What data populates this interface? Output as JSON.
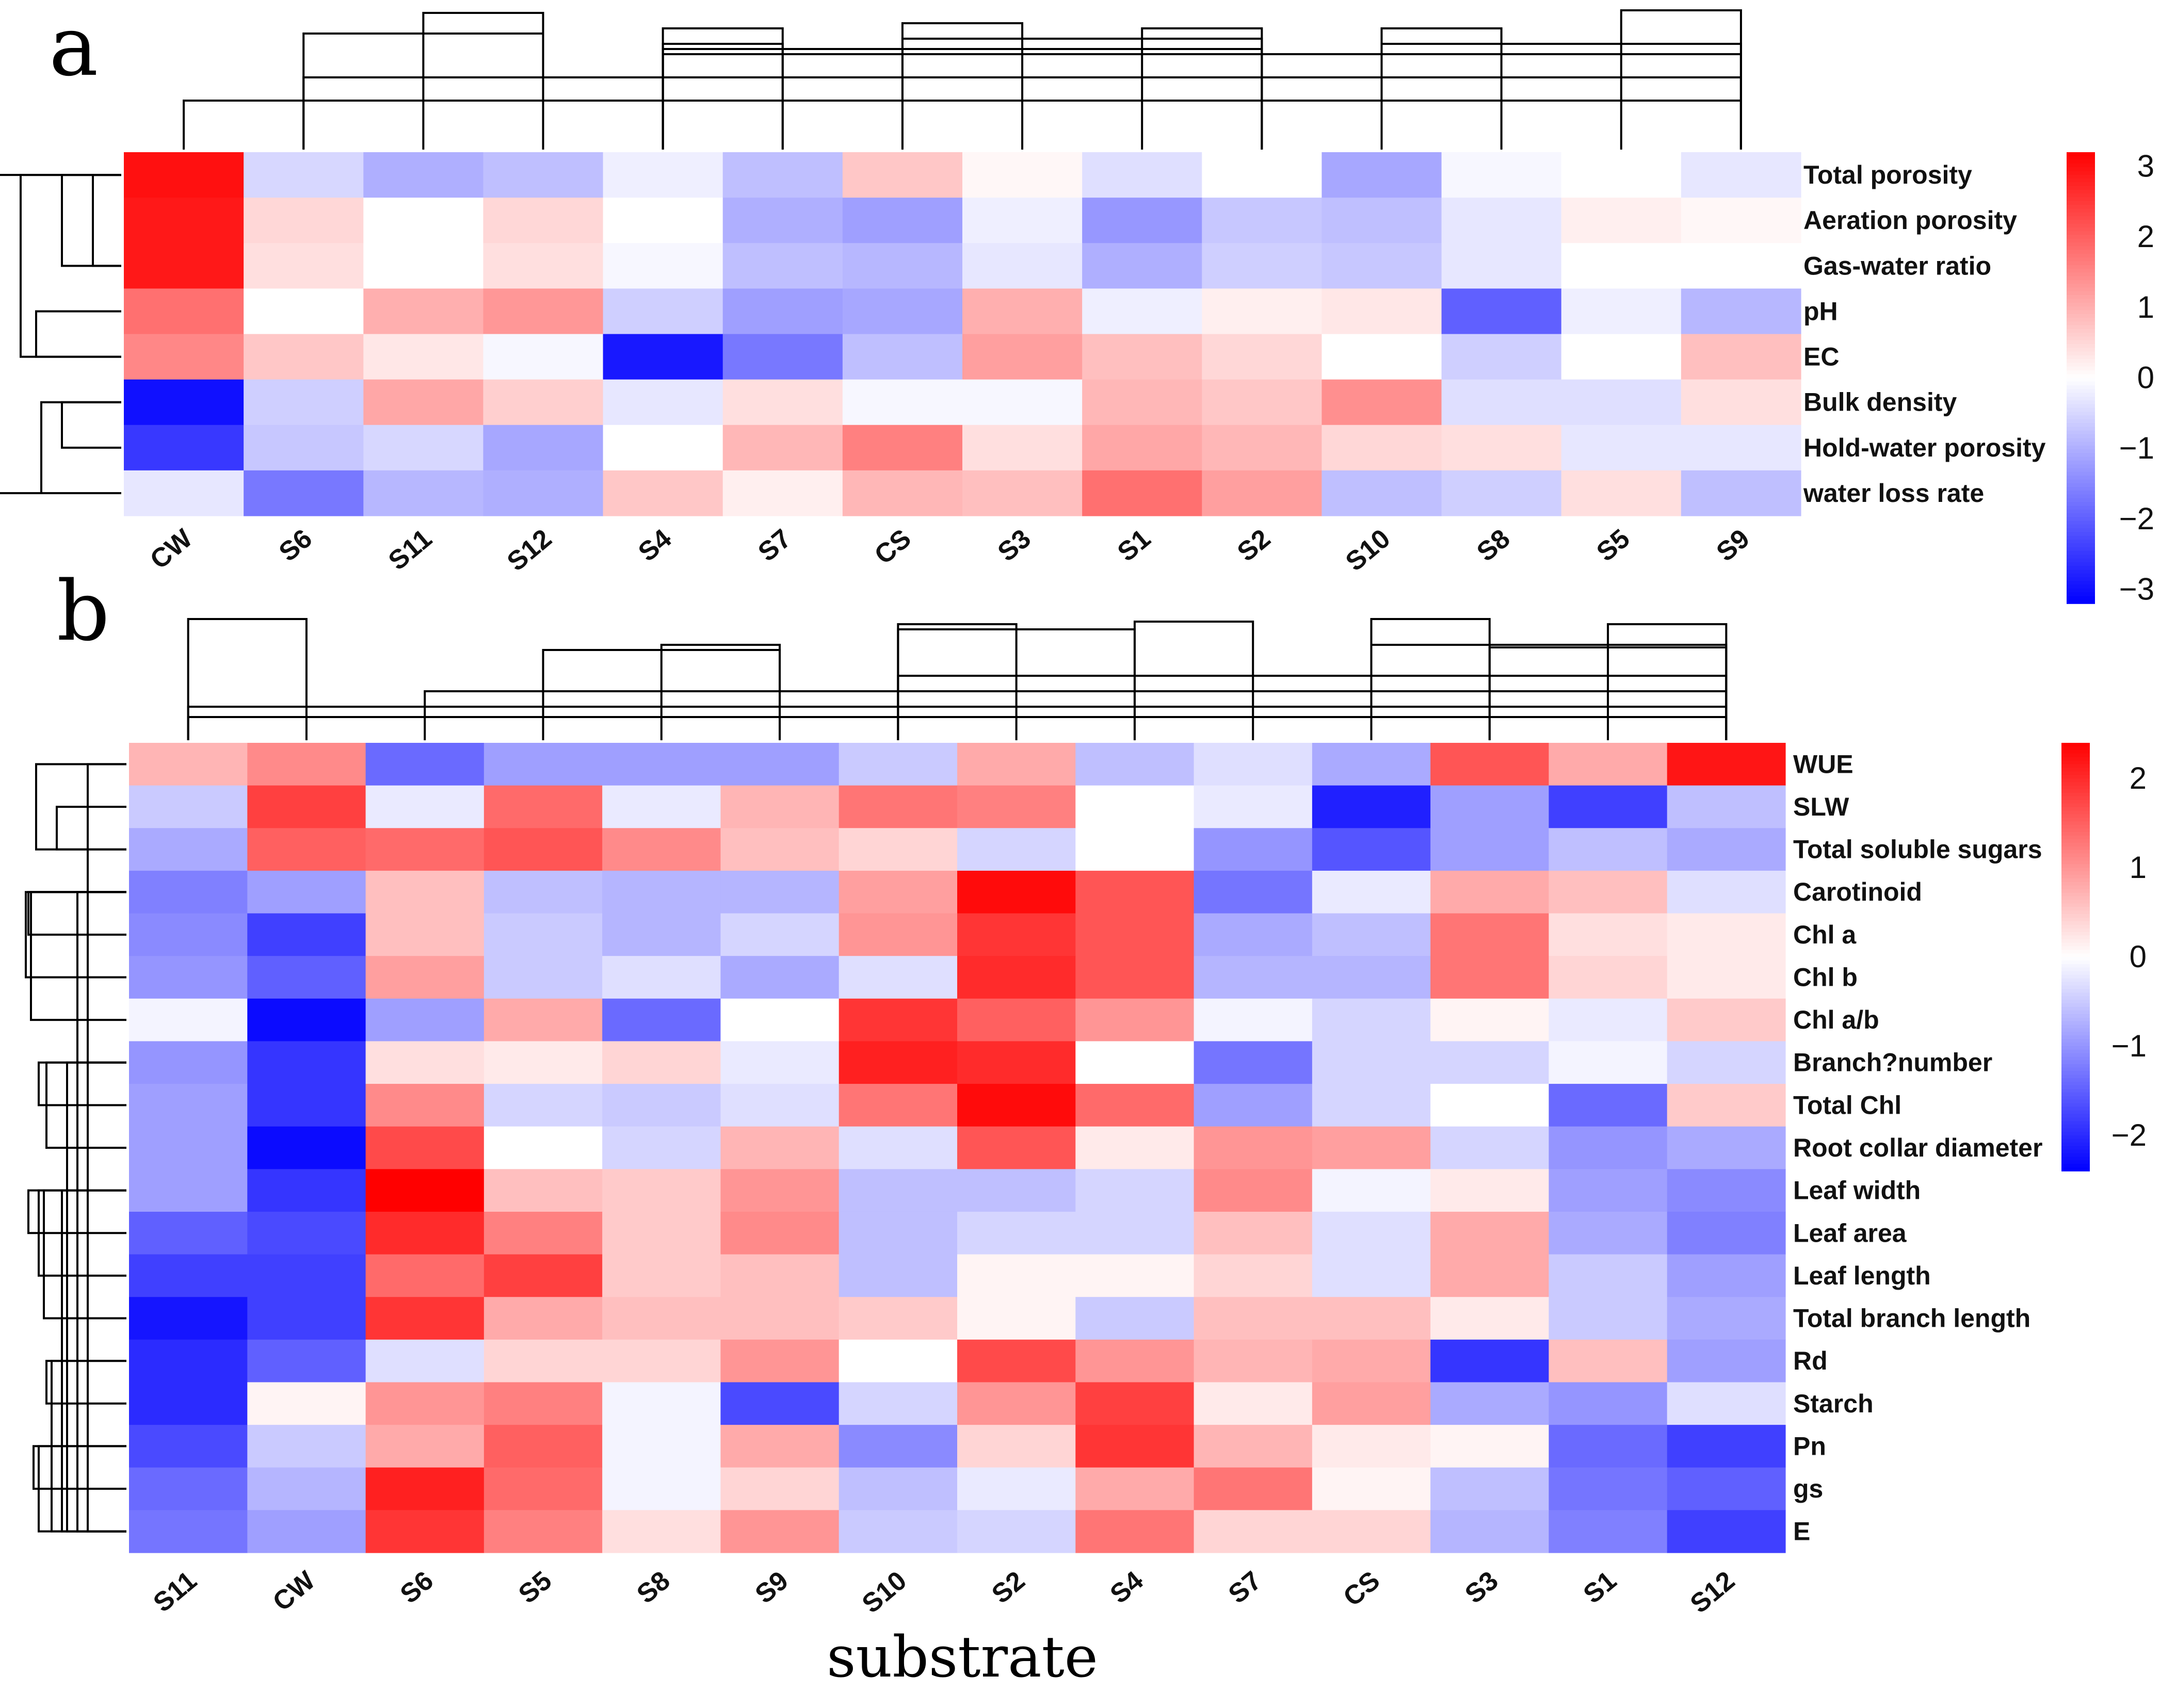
{
  "chart_data": [
    {
      "panel": "a",
      "type": "heatmap",
      "columns": [
        "CW",
        "S6",
        "S11",
        "S12",
        "S4",
        "S7",
        "CS",
        "S3",
        "S1",
        "S2",
        "S10",
        "S8",
        "S5",
        "S9"
      ],
      "rows": [
        "Total porosity",
        "Aeration porosity",
        "Gas-water ratio",
        "pH",
        "EC",
        "Bulk density",
        "Hold-water porosity",
        "water loss rate"
      ],
      "values": [
        [
          3.0,
          -0.5,
          -1.0,
          -0.8,
          -0.2,
          -0.8,
          0.7,
          0.1,
          -0.4,
          0.0,
          -1.1,
          -0.1,
          0.0,
          -0.3
        ],
        [
          2.9,
          0.5,
          0.0,
          0.5,
          0.0,
          -1.0,
          -1.2,
          -0.2,
          -1.3,
          -0.7,
          -0.8,
          -0.3,
          0.2,
          0.1
        ],
        [
          2.9,
          0.4,
          0.0,
          0.4,
          -0.1,
          -0.8,
          -0.9,
          -0.3,
          -1.0,
          -0.6,
          -0.7,
          -0.3,
          0.0,
          0.0
        ],
        [
          1.8,
          0.0,
          1.0,
          1.3,
          -0.6,
          -1.2,
          -1.1,
          1.0,
          -0.2,
          0.2,
          0.3,
          -2.0,
          -0.2,
          -0.9
        ],
        [
          1.5,
          0.7,
          0.3,
          -0.1,
          -2.9,
          -1.7,
          -0.8,
          1.2,
          0.8,
          0.5,
          0.0,
          -0.6,
          0.0,
          0.8
        ],
        [
          -3.0,
          -0.6,
          1.1,
          0.6,
          -0.3,
          0.4,
          -0.1,
          -0.1,
          0.9,
          0.7,
          1.4,
          -0.4,
          -0.4,
          0.4
        ],
        [
          -2.5,
          -0.7,
          -0.5,
          -1.1,
          0.0,
          0.9,
          1.6,
          0.4,
          1.1,
          0.9,
          0.5,
          0.4,
          -0.3,
          -0.3
        ],
        [
          -0.3,
          -1.7,
          -0.9,
          -1.0,
          0.7,
          0.2,
          0.9,
          0.8,
          1.8,
          1.2,
          -0.8,
          -0.6,
          0.4,
          -0.8
        ]
      ],
      "color_scale": {
        "min": -3.2,
        "max": 3.2,
        "low": "#0000ff",
        "mid": "#ffffff",
        "high": "#ff0000"
      },
      "legend_ticks": [
        {
          "value": 3,
          "label": "3"
        },
        {
          "value": 2,
          "label": "2"
        },
        {
          "value": 1,
          "label": "1"
        },
        {
          "value": 0,
          "label": "0"
        },
        {
          "value": -1,
          "label": "−1"
        },
        {
          "value": -2,
          "label": "−2"
        },
        {
          "value": -3,
          "label": "−3"
        }
      ]
    },
    {
      "panel": "b",
      "type": "heatmap",
      "columns": [
        "S11",
        "CW",
        "S6",
        "S5",
        "S8",
        "S9",
        "S10",
        "S2",
        "S4",
        "S7",
        "CS",
        "S3",
        "S1",
        "S12"
      ],
      "rows": [
        "WUE",
        "SLW",
        "Total soluble sugars",
        "Carotinoid",
        "Chl a",
        "Chl b",
        "Chl a/b",
        "Branch?number",
        "Total Chl",
        "Root collar diameter",
        "Leaf width",
        "Leaf area",
        "Leaf length",
        "Total branch length",
        "Rd",
        "Starch",
        "Pn",
        "gs",
        "E"
      ],
      "values": [
        [
          0.7,
          1.1,
          -1.4,
          -0.9,
          -0.9,
          -0.9,
          -0.5,
          0.8,
          -0.6,
          -0.3,
          -0.8,
          1.6,
          0.8,
          2.2
        ],
        [
          -0.5,
          1.8,
          -0.2,
          1.4,
          -0.2,
          0.7,
          1.3,
          1.2,
          0.0,
          -0.2,
          -2.1,
          -0.9,
          -1.8,
          -0.6
        ],
        [
          -0.8,
          1.5,
          1.4,
          1.6,
          1.1,
          0.6,
          0.4,
          -0.4,
          0.0,
          -1.0,
          -1.6,
          -0.9,
          -0.6,
          -0.8
        ],
        [
          -1.2,
          -0.9,
          0.6,
          -0.6,
          -0.7,
          -0.7,
          0.9,
          2.3,
          1.6,
          -1.3,
          -0.2,
          0.8,
          0.6,
          -0.3
        ],
        [
          -1.1,
          -1.8,
          0.6,
          -0.5,
          -0.7,
          -0.4,
          1.0,
          1.9,
          1.6,
          -0.8,
          -0.6,
          1.3,
          0.3,
          0.2
        ],
        [
          -1.0,
          -1.5,
          0.9,
          -0.5,
          -0.3,
          -0.8,
          -0.3,
          2.0,
          1.6,
          -0.7,
          -0.7,
          1.3,
          0.4,
          0.2
        ],
        [
          -0.1,
          -2.3,
          -0.9,
          0.8,
          -1.4,
          0.0,
          1.9,
          1.5,
          1.0,
          -0.1,
          -0.4,
          0.1,
          -0.2,
          0.5
        ],
        [
          -1.0,
          -1.9,
          0.3,
          0.2,
          0.4,
          -0.2,
          2.1,
          2.0,
          0.0,
          -1.3,
          -0.4,
          -0.4,
          -0.1,
          -0.4
        ],
        [
          -0.9,
          -1.9,
          1.1,
          -0.4,
          -0.5,
          -0.3,
          1.3,
          2.3,
          1.4,
          -0.9,
          -0.4,
          0.0,
          -1.4,
          0.5
        ],
        [
          -0.9,
          -2.3,
          1.7,
          0.0,
          -0.4,
          0.7,
          -0.3,
          1.6,
          0.2,
          1.0,
          0.9,
          -0.4,
          -1.0,
          -0.8
        ],
        [
          -0.9,
          -1.9,
          2.4,
          0.6,
          0.5,
          1.0,
          -0.6,
          -0.6,
          -0.4,
          1.1,
          -0.1,
          0.2,
          -0.9,
          -1.1
        ],
        [
          -1.5,
          -1.7,
          2.0,
          1.2,
          0.5,
          1.1,
          -0.6,
          -0.4,
          -0.4,
          0.6,
          -0.3,
          0.8,
          -0.8,
          -1.2
        ],
        [
          -1.8,
          -1.8,
          1.4,
          1.8,
          0.5,
          0.6,
          -0.6,
          0.1,
          0.1,
          0.4,
          -0.3,
          0.8,
          -0.5,
          -0.9
        ],
        [
          -2.2,
          -1.8,
          1.9,
          0.8,
          0.6,
          0.6,
          0.5,
          0.1,
          -0.5,
          0.6,
          0.6,
          0.2,
          -0.5,
          -0.8
        ],
        [
          -2.0,
          -1.5,
          -0.3,
          0.4,
          0.4,
          1.0,
          0.0,
          1.7,
          1.0,
          0.7,
          0.8,
          -1.9,
          0.6,
          -0.9
        ],
        [
          -2.0,
          0.1,
          1.0,
          1.2,
          -0.1,
          -1.7,
          -0.4,
          1.0,
          1.8,
          0.2,
          0.9,
          -0.8,
          -1.0,
          -0.3
        ],
        [
          -1.7,
          -0.5,
          0.8,
          1.5,
          -0.1,
          0.8,
          -1.1,
          0.4,
          1.9,
          0.7,
          0.2,
          0.1,
          -1.4,
          -1.8
        ],
        [
          -1.4,
          -0.7,
          2.1,
          1.4,
          -0.1,
          0.4,
          -0.6,
          -0.2,
          0.8,
          1.3,
          0.1,
          -0.6,
          -1.3,
          -1.5
        ],
        [
          -1.3,
          -0.9,
          1.9,
          1.2,
          0.3,
          1.0,
          -0.5,
          -0.4,
          1.3,
          0.4,
          0.4,
          -0.7,
          -1.2,
          -1.8
        ]
      ],
      "color_scale": {
        "min": -2.4,
        "max": 2.4,
        "low": "#0000ff",
        "mid": "#ffffff",
        "high": "#ff0000"
      },
      "legend_ticks": [
        {
          "value": 2,
          "label": "2"
        },
        {
          "value": 1,
          "label": "1"
        },
        {
          "value": 0,
          "label": "0"
        },
        {
          "value": -1,
          "label": "−1"
        },
        {
          "value": -2,
          "label": "−2"
        }
      ],
      "xlabel": "substrate"
    }
  ]
}
